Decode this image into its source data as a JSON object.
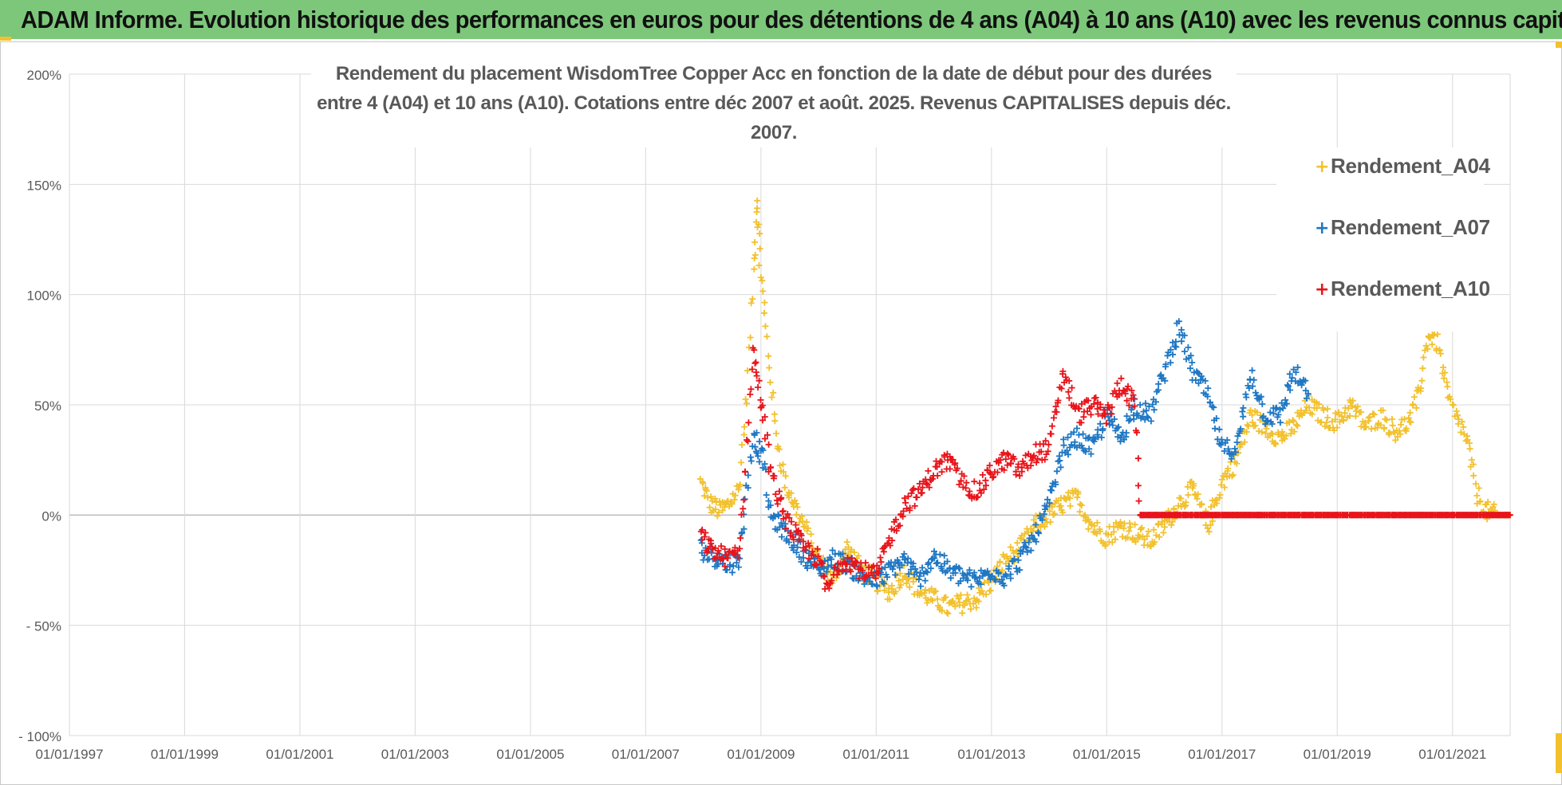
{
  "banner": {
    "text": "ADAM Informe. Evolution historique des performances en euros pour des détentions de 4 ans (A04) à 10 ans (A10) avec les revenus connus capitalisés"
  },
  "colors": {
    "banner_bg": "#7dc77b",
    "A04": "#f2c12e",
    "A07": "#1f77c4",
    "A10": "#e8141b",
    "grid": "#d9d9d9",
    "axis_text": "#595959"
  },
  "chart_data": {
    "type": "scatter",
    "title_lines": [
      "Rendement du placement WisdomTree Copper Acc en fonction de la date de début pour des durées",
      "entre 4 (A04) et 10 ans (A10). Cotations entre déc 2007 et août. 2025. Revenus CAPITALISES depuis déc. 2007."
    ],
    "x_tick_labels": [
      "01/01/1997",
      "01/01/1999",
      "01/01/2001",
      "01/01/2003",
      "01/01/2005",
      "01/01/2007",
      "01/01/2009",
      "01/01/2011",
      "01/01/2013",
      "01/01/2015",
      "01/01/2017",
      "01/01/2019",
      "01/01/2021"
    ],
    "y_tick_labels": [
      "200%",
      "150%",
      "100%",
      "50%",
      "0%",
      "- 50%",
      "- 100%"
    ],
    "xlim": [
      "1997-01-01",
      "2022-01-01"
    ],
    "ylim": [
      -1.0,
      2.0
    ],
    "grid": true,
    "legend_position": "right",
    "series": [
      {
        "name": "Rendement_A04",
        "marker": "+",
        "x": [
          "2007-12-15",
          "2008-02-15",
          "2008-04-15",
          "2008-06-15",
          "2008-08-15",
          "2008-10-01",
          "2008-11-15",
          "2008-12-05",
          "2008-12-25",
          "2009-02-01",
          "2009-04-01",
          "2009-06-01",
          "2009-09-01",
          "2010-01-01",
          "2010-04-01",
          "2010-07-01",
          "2010-10-01",
          "2011-01-01",
          "2011-04-01",
          "2011-07-01",
          "2011-10-01",
          "2012-01-01",
          "2012-04-01",
          "2012-07-01",
          "2012-10-01",
          "2013-01-01",
          "2013-04-01",
          "2013-07-01",
          "2013-10-01",
          "2014-01-01",
          "2014-04-01",
          "2014-07-01",
          "2014-10-01",
          "2015-01-01",
          "2015-04-01",
          "2015-07-01",
          "2015-10-01",
          "2016-01-01",
          "2016-04-01",
          "2016-07-01",
          "2016-10-01",
          "2017-01-01",
          "2017-04-01",
          "2017-07-01",
          "2017-10-01",
          "2018-01-01",
          "2018-04-01",
          "2018-07-01",
          "2018-10-01",
          "2019-01-01",
          "2019-04-01",
          "2019-07-01",
          "2019-10-01",
          "2020-01-01",
          "2020-04-01",
          "2020-06-01",
          "2020-08-01",
          "2020-10-01",
          "2020-12-01",
          "2021-01-15",
          "2021-03-01",
          "2021-04-15",
          "2021-06-01",
          "2021-08-01",
          "2021-10-01",
          "2021-12-31"
        ],
        "y": [
          0.15,
          0.05,
          0.02,
          0.05,
          0.12,
          0.55,
          1.1,
          1.45,
          1.15,
          0.85,
          0.4,
          0.15,
          0.0,
          -0.2,
          -0.3,
          -0.15,
          -0.25,
          -0.3,
          -0.35,
          -0.25,
          -0.35,
          -0.38,
          -0.42,
          -0.4,
          -0.38,
          -0.3,
          -0.2,
          -0.15,
          -0.05,
          0.0,
          0.05,
          0.08,
          -0.05,
          -0.1,
          -0.05,
          -0.08,
          -0.12,
          -0.05,
          0.05,
          0.12,
          -0.05,
          0.15,
          0.25,
          0.45,
          0.4,
          0.35,
          0.4,
          0.5,
          0.45,
          0.42,
          0.5,
          0.4,
          0.45,
          0.38,
          0.42,
          0.55,
          0.82,
          0.78,
          0.55,
          0.45,
          0.4,
          0.3,
          0.1,
          0.02,
          0.0,
          0.0
        ]
      },
      {
        "name": "Rendement_A07",
        "marker": "+",
        "x": [
          "2007-12-15",
          "2008-02-15",
          "2008-04-15",
          "2008-06-15",
          "2008-08-15",
          "2008-10-01",
          "2008-11-15",
          "2008-12-15",
          "2009-01-15",
          "2009-03-01",
          "2009-05-01",
          "2009-07-01",
          "2009-10-01",
          "2010-01-01",
          "2010-04-01",
          "2010-07-01",
          "2010-10-01",
          "2011-01-01",
          "2011-04-01",
          "2011-07-01",
          "2011-10-01",
          "2012-01-01",
          "2012-04-01",
          "2012-07-01",
          "2012-10-01",
          "2013-01-01",
          "2013-04-01",
          "2013-07-01",
          "2013-10-01",
          "2014-01-01",
          "2014-04-01",
          "2014-07-01",
          "2014-10-01",
          "2015-01-01",
          "2015-04-01",
          "2015-07-01",
          "2015-10-01",
          "2016-01-01",
          "2016-04-01",
          "2016-07-01",
          "2016-10-01",
          "2017-01-01",
          "2017-04-01",
          "2017-07-01",
          "2017-10-01",
          "2018-01-01",
          "2018-04-01",
          "2018-07-01"
        ],
        "y": [
          -0.15,
          -0.18,
          -0.2,
          -0.22,
          -0.2,
          0.1,
          0.38,
          0.3,
          0.25,
          0.0,
          -0.05,
          -0.1,
          -0.18,
          -0.25,
          -0.2,
          -0.22,
          -0.28,
          -0.3,
          -0.25,
          -0.2,
          -0.3,
          -0.18,
          -0.25,
          -0.28,
          -0.3,
          -0.25,
          -0.28,
          -0.2,
          -0.1,
          0.05,
          0.3,
          0.35,
          0.3,
          0.45,
          0.35,
          0.5,
          0.45,
          0.65,
          0.85,
          0.65,
          0.55,
          0.3,
          0.3,
          0.65,
          0.45,
          0.45,
          0.65,
          0.55
        ]
      },
      {
        "name": "Rendement_A10",
        "marker": "+",
        "x": [
          "2007-12-15",
          "2008-02-15",
          "2008-04-15",
          "2008-06-15",
          "2008-08-15",
          "2008-10-01",
          "2008-11-15",
          "2008-12-15",
          "2009-01-15",
          "2009-03-01",
          "2009-05-01",
          "2009-07-01",
          "2009-10-01",
          "2010-01-01",
          "2010-03-01",
          "2010-05-01",
          "2010-07-01",
          "2010-10-01",
          "2011-01-01",
          "2011-04-01",
          "2011-07-01",
          "2011-10-01",
          "2012-01-01",
          "2012-04-01",
          "2012-07-01",
          "2012-10-01",
          "2013-01-01",
          "2013-04-01",
          "2013-07-01",
          "2013-10-01",
          "2014-01-01",
          "2014-04-01",
          "2014-07-01",
          "2014-10-01",
          "2015-01-01",
          "2015-04-01",
          "2015-07-01",
          "2015-08-01",
          "2016-01-01",
          "2016-07-01",
          "2017-01-01",
          "2017-07-01",
          "2018-01-01",
          "2018-07-01",
          "2019-01-01",
          "2019-07-01",
          "2020-01-01",
          "2020-07-01",
          "2021-01-01",
          "2021-07-01",
          "2021-12-31"
        ],
        "y": [
          -0.1,
          -0.15,
          -0.18,
          -0.2,
          -0.15,
          0.3,
          0.75,
          0.6,
          0.45,
          0.2,
          0.05,
          -0.05,
          -0.15,
          -0.2,
          -0.35,
          -0.22,
          -0.2,
          -0.25,
          -0.28,
          -0.1,
          0.05,
          0.1,
          0.2,
          0.25,
          0.15,
          0.1,
          0.2,
          0.25,
          0.2,
          0.28,
          0.3,
          0.65,
          0.45,
          0.5,
          0.45,
          0.6,
          0.5,
          0.0,
          0.0,
          0.0,
          0.0,
          0.0,
          0.0,
          0.0,
          0.0,
          0.0,
          0.0,
          0.0,
          0.0,
          0.0,
          0.0
        ]
      }
    ]
  }
}
